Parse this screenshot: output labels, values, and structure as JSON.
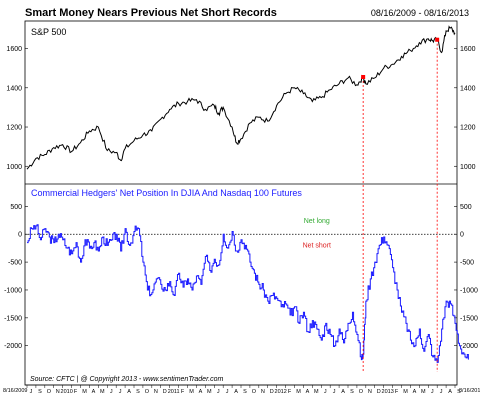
{
  "chart_data": {
    "type": "line",
    "title": "Smart Money Nears Previous Net Short Records",
    "date_range": "08/16/2009 - 08/16/2013",
    "source": "Source:  CFTC  |  @ Copyright 2013  -  www.sentimenTrader.com",
    "x_month_labels": [
      "J",
      "S",
      "O",
      "N",
      "2010",
      "F",
      "M",
      "A",
      "M",
      "J",
      "J",
      "A",
      "S",
      "O",
      "N",
      "D",
      "2011",
      "F",
      "M",
      "A",
      "M",
      "J",
      "J",
      "A",
      "S",
      "O",
      "N",
      "D",
      "2012",
      "F",
      "M",
      "A",
      "M",
      "J",
      "J",
      "A",
      "S",
      "O",
      "N",
      "D",
      "2013",
      "F",
      "M",
      "A",
      "M",
      "J",
      "J",
      "A",
      "S"
    ],
    "x_edge_labels": [
      "8/16/2009",
      "8/16/2013"
    ],
    "markers_at_month": [
      37.7,
      46.0
    ],
    "top_panel": {
      "label": "S&P 500",
      "ylim": [
        930,
        1720
      ],
      "yticks": [
        1000,
        1200,
        1400,
        1600
      ],
      "series": [
        {
          "name": "S&P 500",
          "color": "#000000",
          "values": [
            [
              0,
              985
            ],
            [
              1,
              1040
            ],
            [
              2,
              1060
            ],
            [
              3,
              1095
            ],
            [
              4,
              1110
            ],
            [
              5,
              1075
            ],
            [
              6,
              1120
            ],
            [
              7,
              1180
            ],
            [
              8,
              1200
            ],
            [
              9,
              1080
            ],
            [
              10,
              1070
            ],
            [
              10.5,
              1030
            ],
            [
              11,
              1090
            ],
            [
              12,
              1130
            ],
            [
              13,
              1160
            ],
            [
              14,
              1180
            ],
            [
              15,
              1240
            ],
            [
              16,
              1290
            ],
            [
              17,
              1320
            ],
            [
              18,
              1330
            ],
            [
              19,
              1340
            ],
            [
              20,
              1290
            ],
            [
              21,
              1310
            ],
            [
              21.5,
              1270
            ],
            [
              22,
              1300
            ],
            [
              23,
              1200
            ],
            [
              23.5,
              1120
            ],
            [
              24,
              1140
            ],
            [
              25,
              1220
            ],
            [
              26,
              1250
            ],
            [
              27,
              1230
            ],
            [
              28,
              1310
            ],
            [
              29,
              1370
            ],
            [
              30,
              1400
            ],
            [
              31,
              1370
            ],
            [
              32,
              1330
            ],
            [
              33,
              1350
            ],
            [
              34,
              1390
            ],
            [
              35,
              1420
            ],
            [
              36,
              1450
            ],
            [
              37,
              1415
            ],
            [
              37.7,
              1455
            ],
            [
              38,
              1420
            ],
            [
              39,
              1450
            ],
            [
              40,
              1500
            ],
            [
              41,
              1520
            ],
            [
              42,
              1560
            ],
            [
              43,
              1590
            ],
            [
              44,
              1630
            ],
            [
              45,
              1650
            ],
            [
              45.5,
              1640
            ],
            [
              46,
              1645
            ],
            [
              46.5,
              1580
            ],
            [
              47,
              1690
            ],
            [
              47.5,
              1705
            ],
            [
              48,
              1680
            ]
          ]
        }
      ],
      "markers": [
        {
          "x": 37.7,
          "y": 1455,
          "color": "#ff0000"
        },
        {
          "x": 46.0,
          "y": 1645,
          "color": "#ff0000"
        }
      ]
    },
    "bottom_panel": {
      "label": "Commercial Hedgers' Net Position In DJIA  And Nasdaq 100 Futures",
      "ylim": [
        -2400,
        650
      ],
      "yticks": [
        500,
        0,
        -500,
        -1000,
        -1500,
        -2000
      ],
      "zero_line": {
        "y": 0,
        "style": "dotted"
      },
      "annotations": [
        {
          "text": "Net long",
          "x": 32.5,
          "y": 250,
          "color": "#33aa33"
        },
        {
          "text": "Net short",
          "x": 32.5,
          "y": -190,
          "color": "#dd2222"
        }
      ],
      "series": [
        {
          "name": "Commercial Hedgers' Net Position",
          "color": "#1a1aff",
          "values": [
            [
              0,
              -150
            ],
            [
              0.5,
              100
            ],
            [
              1,
              150
            ],
            [
              1.5,
              -100
            ],
            [
              2,
              100
            ],
            [
              2.5,
              -50
            ],
            [
              3,
              -150
            ],
            [
              3.5,
              0
            ],
            [
              4,
              -100
            ],
            [
              4.5,
              -250
            ],
            [
              5,
              -350
            ],
            [
              5.5,
              -150
            ],
            [
              6,
              -500
            ],
            [
              6.5,
              -100
            ],
            [
              7,
              -250
            ],
            [
              7.5,
              -150
            ],
            [
              8,
              -300
            ],
            [
              8.5,
              -50
            ],
            [
              9,
              -200
            ],
            [
              9.5,
              -100
            ],
            [
              10,
              0
            ],
            [
              10.5,
              -300
            ],
            [
              11,
              100
            ],
            [
              11.5,
              -200
            ],
            [
              12,
              50
            ],
            [
              12.5,
              100
            ],
            [
              13,
              -500
            ],
            [
              13.5,
              -1000
            ],
            [
              14,
              -1050
            ],
            [
              14.5,
              -800
            ],
            [
              15,
              -900
            ],
            [
              15.5,
              -1000
            ],
            [
              16,
              -850
            ],
            [
              16.5,
              -1100
            ],
            [
              17,
              -700
            ],
            [
              17.5,
              -950
            ],
            [
              18,
              -800
            ],
            [
              18.5,
              -1000
            ],
            [
              19,
              -750
            ],
            [
              19.5,
              -900
            ],
            [
              20,
              -400
            ],
            [
              20.5,
              -650
            ],
            [
              21,
              -450
            ],
            [
              21.5,
              -550
            ],
            [
              22,
              0
            ],
            [
              22.5,
              -250
            ],
            [
              23,
              50
            ],
            [
              23.5,
              -300
            ],
            [
              24,
              -100
            ],
            [
              24.5,
              -200
            ],
            [
              25,
              -500
            ],
            [
              25.5,
              -700
            ],
            [
              26,
              -900
            ],
            [
              26.5,
              -1000
            ],
            [
              27,
              -1200
            ],
            [
              27.5,
              -1100
            ],
            [
              28,
              -1150
            ],
            [
              28.5,
              -1300
            ],
            [
              29,
              -1250
            ],
            [
              29.5,
              -1450
            ],
            [
              30,
              -1300
            ],
            [
              30.5,
              -1600
            ],
            [
              31,
              -1400
            ],
            [
              31.5,
              -1750
            ],
            [
              32,
              -1550
            ],
            [
              32.5,
              -1700
            ],
            [
              33,
              -1900
            ],
            [
              33.5,
              -1600
            ],
            [
              34,
              -1800
            ],
            [
              34.5,
              -2000
            ],
            [
              35,
              -1700
            ],
            [
              35.5,
              -1950
            ],
            [
              36,
              -1600
            ],
            [
              36.5,
              -1400
            ],
            [
              37,
              -1800
            ],
            [
              37.5,
              -2250
            ],
            [
              37.7,
              -2150
            ],
            [
              38,
              -1200
            ],
            [
              38.5,
              -800
            ],
            [
              39,
              -500
            ],
            [
              39.5,
              -200
            ],
            [
              40,
              -50
            ],
            [
              40.5,
              -200
            ],
            [
              41,
              -600
            ],
            [
              41.5,
              -1000
            ],
            [
              42,
              -1400
            ],
            [
              42.5,
              -1600
            ],
            [
              43,
              -1900
            ],
            [
              43.5,
              -2000
            ],
            [
              44,
              -1700
            ],
            [
              44.5,
              -2100
            ],
            [
              45,
              -1800
            ],
            [
              45.5,
              -2200
            ],
            [
              46,
              -2300
            ],
            [
              46.5,
              -1700
            ],
            [
              47,
              -1200
            ],
            [
              47.5,
              -1250
            ],
            [
              48,
              -1600
            ],
            [
              48.5,
              -2000
            ],
            [
              49,
              -2150
            ],
            [
              49.5,
              -2250
            ]
          ]
        }
      ]
    }
  }
}
